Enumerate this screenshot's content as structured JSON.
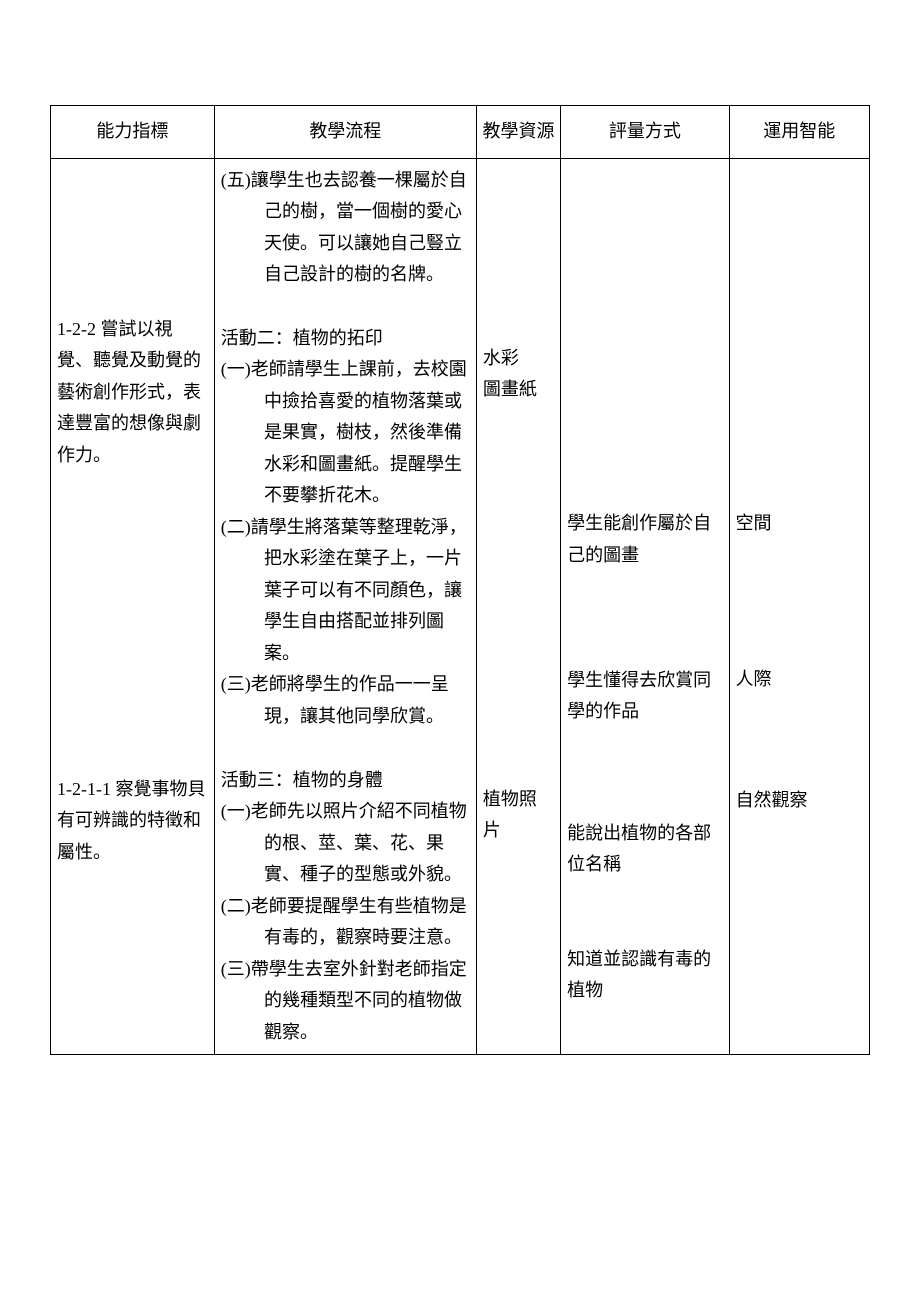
{
  "table": {
    "headers": {
      "c1": "能力指標",
      "c2": "教學流程",
      "c3": "教學資源",
      "c4": "評量方式",
      "c5": "運用智能"
    },
    "col1": {
      "a": "1-2-2 嘗試以視覺、聽覺及動覺的藝術創作形式，表達豐富的想像與劇作力。",
      "b": "1-2-1-1 察覺事物貝有可辨識的特徵和屬性。"
    },
    "col2": {
      "five": "(五)讓學生也去認養一棵屬於自己的樹，當一個樹的愛心天使。可以讓她自己豎立自己設計的樹的名牌。",
      "act2_title": "活動二：植物的拓印",
      "act2_1": "(一)老師請學生上課前，去校園中撿拾喜愛的植物落葉或是果實，樹枝，然後準備水彩和圖畫紙。提醒學生不要攀折花木。",
      "act2_2": "(二)請學生將落葉等整理乾淨，把水彩塗在葉子上，一片葉子可以有不同顏色，讓學生自由搭配並排列圖案。",
      "act2_3": "(三)老師將學生的作品一一呈現，讓其他同學欣賞。",
      "act3_title": "活動三：植物的身體",
      "act3_1": "(一)老師先以照片介紹不同植物的根、莖、葉、花、果實、種子的型態或外貌。",
      "act3_2": "(二)老師要提醒學生有些植物是有毒的，觀察時要注意。",
      "act3_3": "(三)帶學生去室外針對老師指定的幾種類型不同的植物做觀察。"
    },
    "col3": {
      "a": "水彩",
      "b": "圖畫紙",
      "c": "植物照片"
    },
    "col4": {
      "a": "學生能創作屬於自己的圖畫",
      "b": "學生懂得去欣賞同學的作品",
      "c": "能說出植物的各部位名稱",
      "d": "知道並認識有毒的植物"
    },
    "col5": {
      "a": "空間",
      "b": "人際",
      "c": "自然觀察"
    }
  },
  "style": {
    "background_color": "#ffffff",
    "text_color": "#000000",
    "border_color": "#000000",
    "font_size_pt": 14,
    "line_height": 1.75,
    "col_widths_pct": [
      17.5,
      28,
      9,
      18,
      15
    ]
  }
}
